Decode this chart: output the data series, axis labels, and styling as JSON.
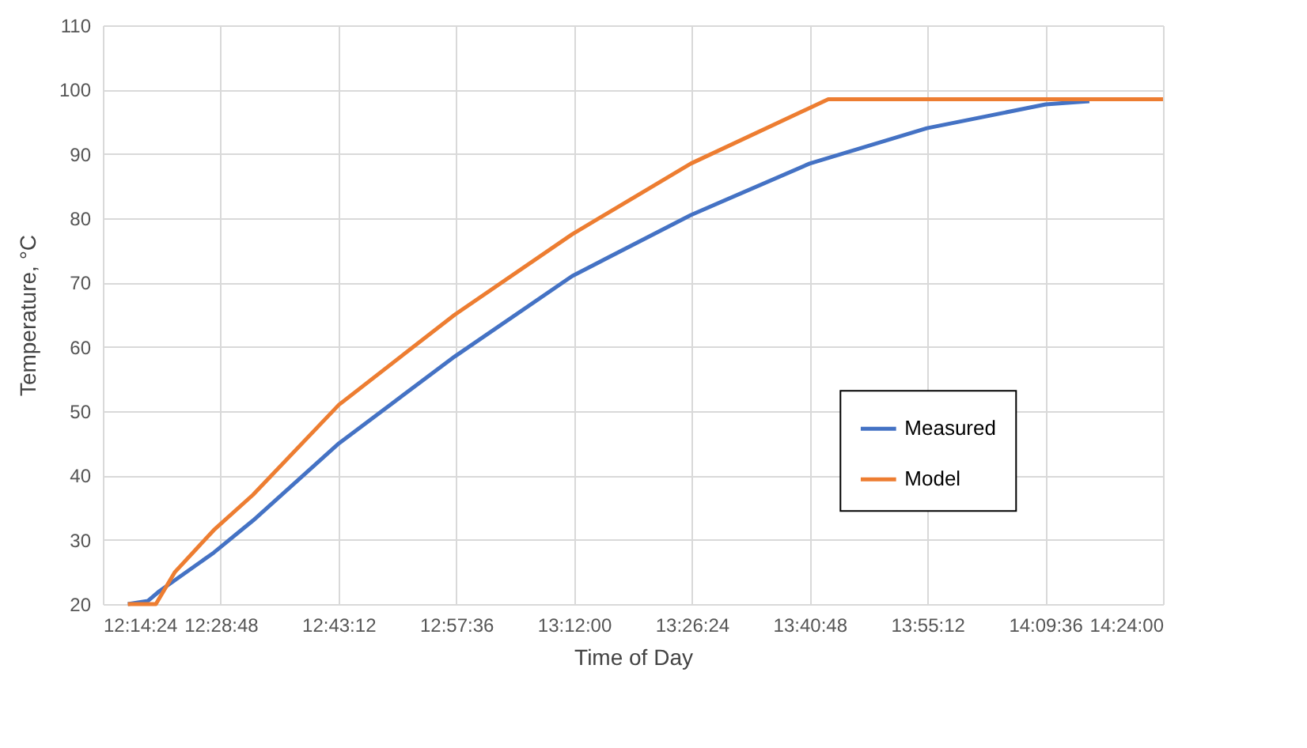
{
  "chart_data": {
    "type": "line",
    "xlabel": "Time of Day",
    "ylabel": "Temperature, °C",
    "series": [
      {
        "name": "Measured",
        "color": "#4472c4",
        "x": [
          12.291,
          12.332,
          12.355,
          12.466,
          12.546,
          12.721,
          12.957,
          13.196,
          13.438,
          13.68,
          13.919,
          14.161,
          14.25
        ],
        "values": [
          20,
          20.5,
          22,
          28,
          33,
          45,
          58.5,
          71,
          80.5,
          88.5,
          94,
          97.7,
          98.2
        ]
      },
      {
        "name": "Model",
        "color": "#ed7d31",
        "x": [
          12.291,
          12.348,
          12.387,
          12.466,
          12.546,
          12.721,
          12.957,
          13.196,
          13.438,
          13.718,
          14.4
        ],
        "values": [
          20,
          20,
          25,
          31.5,
          37,
          51,
          65,
          77.5,
          88.5,
          98.5,
          98.5
        ]
      }
    ],
    "xlim": [
      12.24,
      14.4
    ],
    "xticks": [
      {
        "value": 12.24,
        "label": "12:14:24"
      },
      {
        "value": 12.48,
        "label": "12:28:48"
      },
      {
        "value": 12.72,
        "label": "12:43:12"
      },
      {
        "value": 12.96,
        "label": "12:57:36"
      },
      {
        "value": 13.2,
        "label": "13:12:00"
      },
      {
        "value": 13.44,
        "label": "13:26:24"
      },
      {
        "value": 13.68,
        "label": "13:40:48"
      },
      {
        "value": 13.92,
        "label": "13:55:12"
      },
      {
        "value": 14.16,
        "label": "14:09:36"
      },
      {
        "value": 14.4,
        "label": "14:24:00"
      }
    ],
    "ylim": [
      20,
      110
    ],
    "yticks": [
      20,
      30,
      40,
      50,
      60,
      70,
      80,
      90,
      100,
      110
    ],
    "grid": true,
    "legend": "right",
    "marker": "none",
    "line_style": "solid"
  }
}
